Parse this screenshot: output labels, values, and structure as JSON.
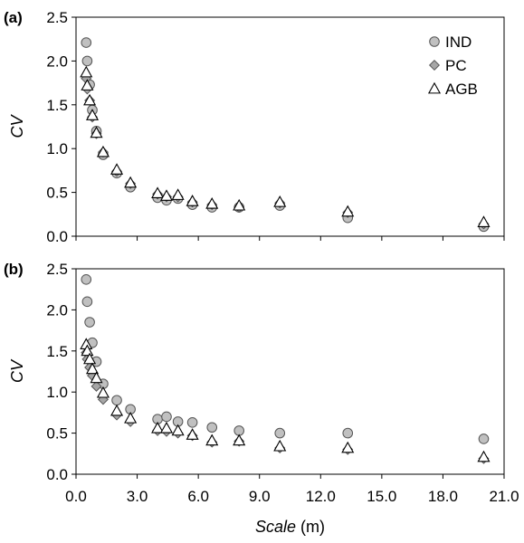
{
  "chart_data": [
    {
      "type": "scatter",
      "panel_label": "(a)",
      "xlabel": "Scale",
      "xlabel_unit": "(m)",
      "ylabel": "CV",
      "xlim": [
        0,
        21
      ],
      "ylim": [
        0,
        2.5
      ],
      "x_ticks": [
        "0.0",
        "3.0",
        "6.0",
        "9.0",
        "12.0",
        "15.0",
        "18.0",
        "21.0"
      ],
      "y_ticks": [
        "0.0",
        "0.5",
        "1.0",
        "1.5",
        "2.0",
        "2.5"
      ],
      "legend": {
        "placement": "top-right",
        "entries": [
          "IND",
          "PC",
          "AGB"
        ]
      },
      "series": [
        {
          "name": "IND",
          "marker": "circle",
          "x": [
            0.5,
            0.55,
            0.67,
            0.8,
            1.0,
            1.33,
            2.0,
            2.67,
            4.0,
            4.44,
            5.0,
            5.71,
            6.67,
            8.0,
            10.0,
            13.33,
            20.0
          ],
          "y": [
            2.21,
            2.0,
            1.73,
            1.44,
            1.2,
            0.93,
            0.72,
            0.56,
            0.44,
            0.41,
            0.43,
            0.36,
            0.33,
            0.33,
            0.35,
            0.21,
            0.11
          ]
        },
        {
          "name": "PC",
          "marker": "diamond",
          "x": [
            0.5,
            0.55,
            0.67,
            0.8,
            1.0,
            1.33,
            2.0,
            2.67,
            4.0,
            4.44,
            5.0,
            5.71,
            6.67,
            8.0,
            10.0,
            13.33,
            20.0
          ],
          "y": [
            1.8,
            1.68,
            1.55,
            1.36,
            1.17,
            0.96,
            0.74,
            0.6,
            0.48,
            0.45,
            0.45,
            0.39,
            0.36,
            0.33,
            0.38,
            0.27,
            0.14
          ]
        },
        {
          "name": "AGB",
          "marker": "triangle",
          "x": [
            0.5,
            0.55,
            0.67,
            0.8,
            1.0,
            1.33,
            2.0,
            2.67,
            4.0,
            4.44,
            5.0,
            5.71,
            6.67,
            8.0,
            10.0,
            13.33,
            20.0
          ],
          "y": [
            1.87,
            1.72,
            1.55,
            1.38,
            1.18,
            0.96,
            0.76,
            0.61,
            0.49,
            0.46,
            0.47,
            0.4,
            0.37,
            0.35,
            0.39,
            0.28,
            0.16
          ]
        }
      ]
    },
    {
      "type": "scatter",
      "panel_label": "(b)",
      "xlabel": "Scale",
      "xlabel_unit": "(m)",
      "ylabel": "CV",
      "xlim": [
        0,
        21
      ],
      "ylim": [
        0,
        2.5
      ],
      "x_ticks": [
        "0.0",
        "3.0",
        "6.0",
        "9.0",
        "12.0",
        "15.0",
        "18.0",
        "21.0"
      ],
      "y_ticks": [
        "0.0",
        "0.5",
        "1.0",
        "1.5",
        "2.0",
        "2.5"
      ],
      "series": [
        {
          "name": "IND",
          "marker": "circle",
          "x": [
            0.5,
            0.55,
            0.67,
            0.8,
            1.0,
            1.33,
            2.0,
            2.67,
            4.0,
            4.44,
            5.0,
            5.71,
            6.67,
            8.0,
            10.0,
            13.33,
            20.0
          ],
          "y": [
            2.37,
            2.1,
            1.85,
            1.6,
            1.37,
            1.1,
            0.9,
            0.79,
            0.67,
            0.7,
            0.64,
            0.63,
            0.57,
            0.53,
            0.5,
            0.5,
            0.43
          ]
        },
        {
          "name": "PC",
          "marker": "diamond",
          "x": [
            0.5,
            0.55,
            0.67,
            0.8,
            1.0,
            1.33,
            2.0,
            2.67,
            4.0,
            4.44,
            5.0,
            5.71,
            6.67,
            8.0,
            10.0,
            13.33,
            20.0
          ],
          "y": [
            1.48,
            1.4,
            1.3,
            1.2,
            1.07,
            0.91,
            0.72,
            0.64,
            0.53,
            0.52,
            0.5,
            0.47,
            0.39,
            0.4,
            0.32,
            0.3,
            0.19
          ]
        },
        {
          "name": "AGB",
          "marker": "triangle",
          "x": [
            0.5,
            0.55,
            0.67,
            0.8,
            1.0,
            1.33,
            2.0,
            2.67,
            4.0,
            4.44,
            5.0,
            5.71,
            6.67,
            8.0,
            10.0,
            13.33,
            20.0
          ],
          "y": [
            1.58,
            1.5,
            1.4,
            1.28,
            1.17,
            0.99,
            0.77,
            0.68,
            0.56,
            0.56,
            0.53,
            0.48,
            0.41,
            0.41,
            0.34,
            0.32,
            0.21
          ]
        }
      ]
    }
  ]
}
